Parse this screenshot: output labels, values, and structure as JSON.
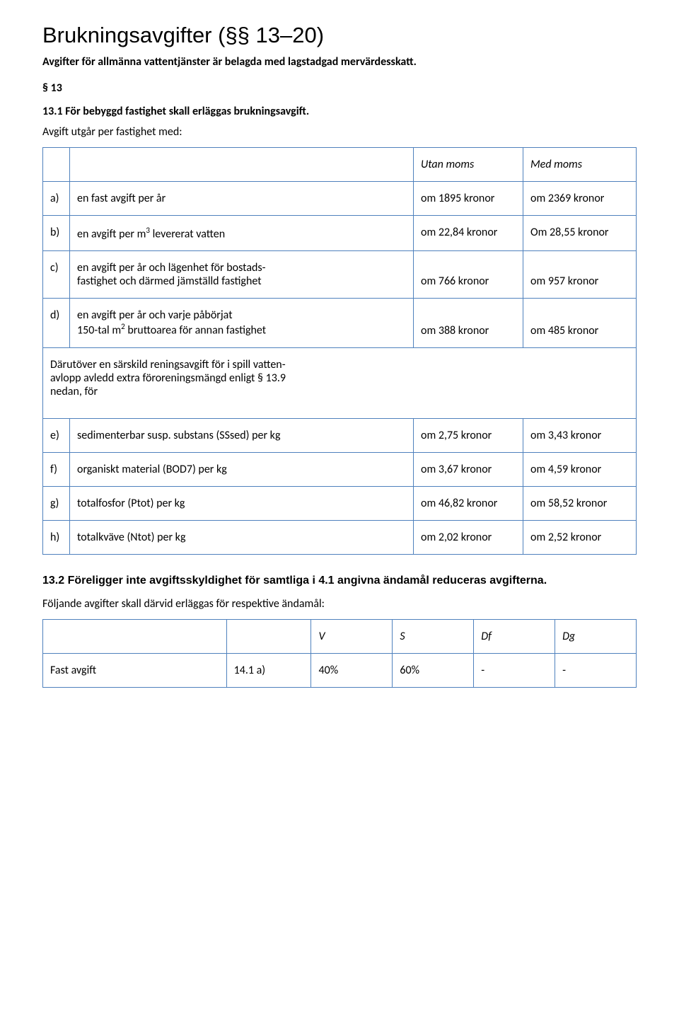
{
  "title": "Brukningsavgifter (§§ 13–20)",
  "subtitle": "Avgifter för allmänna vattentjänster är belagda med lagstadgad mervärdesskatt.",
  "sec13_label": "§ 13",
  "sec13_1": "13.1  För bebyggd fastighet skall erläggas brukningsavgift.",
  "sec13_intro": "Avgift utgår per fastighet med:",
  "table": {
    "header_utan": "Utan moms",
    "header_med": "Med moms",
    "rows": [
      {
        "k": "a)",
        "d": "en fast avgift per år",
        "u": "om 1895 kronor",
        "m": "om 2369 kronor"
      },
      {
        "k": "b)",
        "d_html": "en avgift per m<sup>3</sup> levererat vatten",
        "u": "om 22,84 kronor",
        "m": "Om 28,55 kronor"
      },
      {
        "k": "c)",
        "d_html": "en avgift per år och lägenhet för bostads-<br>fastighet och därmed jämställd fastighet",
        "u": "om 766 kronor",
        "m": "om 957 kronor"
      },
      {
        "k": "d)",
        "d_html": "en avgift per år och varje påbörjat<br>150-tal m<sup>2</sup> bruttoarea för annan fastighet",
        "u": "om 388 kronor",
        "m": "om 485 kronor"
      }
    ],
    "mid_text_html": "Därutöver en särskild reningsavgift för i spill vatten-<br>avlopp avledd extra föroreningsmängd enligt § 13.9<br>nedan, för",
    "rows2": [
      {
        "k": "e)",
        "d": "sedimenterbar susp. substans (SSsed) per kg",
        "u": "om 2,75 kronor",
        "m": "om 3,43 kronor"
      },
      {
        "k": "f)",
        "d": "organiskt material (BOD7) per kg",
        "u": "om 3,67 kronor",
        "m": "om 4,59 kronor"
      },
      {
        "k": "g)",
        "d": "totalfosfor (Ptot) per kg",
        "u": "om 46,82 kronor",
        "m": "om 58,52 kronor"
      },
      {
        "k": "h)",
        "d": "totalkväve (Ntot) per kg",
        "u": "om 2,02 kronor",
        "m": "om 2,52 kronor"
      }
    ]
  },
  "sec13_2_heading": "13.2  Föreligger inte avgiftsskyldighet för samtliga i 4.1 angivna ändamål reduceras avgifterna.",
  "sec13_2_text": "Följande avgifter skall därvid erläggas för respektive ändamål:",
  "bottom": {
    "headers": [
      "V",
      "S",
      "Df",
      "Dg"
    ],
    "row": {
      "label": "Fast avgift",
      "ref": "14.1 a)",
      "v": "40%",
      "s": "60%",
      "df": "-",
      "dg": "-"
    }
  },
  "colors": {
    "border": "#4f81bd",
    "text": "#000000",
    "background": "#ffffff"
  }
}
